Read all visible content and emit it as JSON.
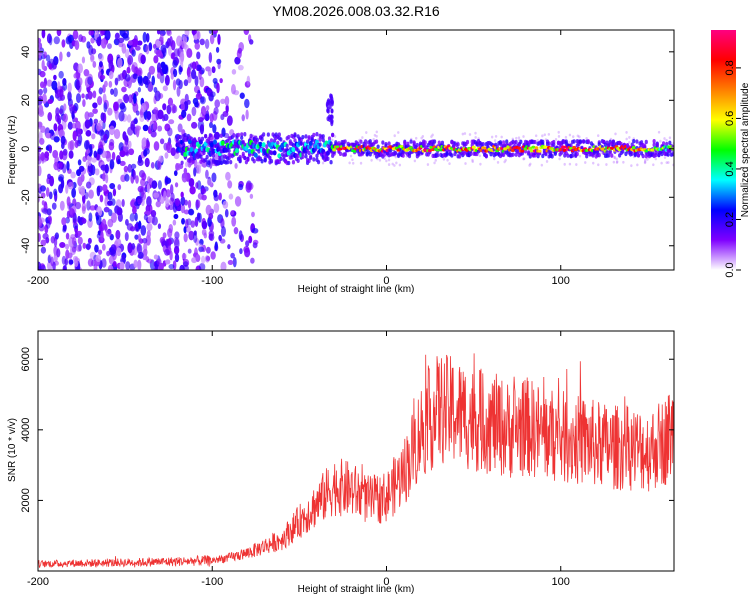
{
  "title": "YM08.2026.008.03.32.R16",
  "chart_data": [
    {
      "type": "heatmap",
      "title": "YM08.2026.008.03.32.R16",
      "xlabel": "Height of straight line (km)",
      "ylabel": "Frequency (Hz)",
      "xlim": [
        -200,
        165
      ],
      "ylim": [
        -50,
        49
      ],
      "xticks": [
        -200,
        -100,
        0,
        100
      ],
      "yticks": [
        -40,
        -20,
        0,
        20,
        40
      ],
      "colorbar": {
        "label": "Normalized spectral amplitude",
        "range": [
          0,
          0.95
        ],
        "ticks": [
          "0.0",
          "0.2",
          "0.4",
          "0.6",
          "0.8"
        ],
        "tick_values": [
          0,
          0.2,
          0.4,
          0.6,
          0.8
        ],
        "stops": [
          "#ffffff",
          "#7f00ff",
          "#0000ff",
          "#00ffff",
          "#00ff00",
          "#ffff00",
          "#ff7f00",
          "#ff0000",
          "#ff0080"
        ]
      },
      "description_points": {
        "noise_region_x": [
          -200,
          -75
        ],
        "signal_line_center_hz": 0,
        "signal_onset_km": -120,
        "strong_signal_from_km": -30,
        "strong_signal_to_km": 150
      }
    },
    {
      "type": "line",
      "xlabel": "Height of straight line (km)",
      "ylabel": "SNR (10 * v/v)",
      "xlim": [
        -200,
        165
      ],
      "ylim": [
        0,
        6800
      ],
      "xticks": [
        -200,
        -100,
        0,
        100
      ],
      "yticks": [
        2000,
        4000,
        6000
      ],
      "color": "#ee3333",
      "series": [
        {
          "name": "SNR",
          "x": [
            -200,
            -180,
            -160,
            -140,
            -120,
            -100,
            -90,
            -80,
            -70,
            -60,
            -50,
            -40,
            -30,
            -20,
            -10,
            0,
            10,
            20,
            30,
            40,
            50,
            60,
            70,
            80,
            90,
            100,
            110,
            120,
            130,
            140,
            150,
            160,
            165
          ],
          "values": [
            200,
            220,
            230,
            250,
            270,
            300,
            380,
            500,
            700,
            900,
            1400,
            1900,
            2400,
            2300,
            2000,
            2100,
            2800,
            4000,
            4600,
            4500,
            4300,
            4200,
            4000,
            4100,
            3900,
            3800,
            3700,
            3600,
            3500,
            3500,
            3400,
            3700,
            4000
          ]
        }
      ]
    }
  ]
}
